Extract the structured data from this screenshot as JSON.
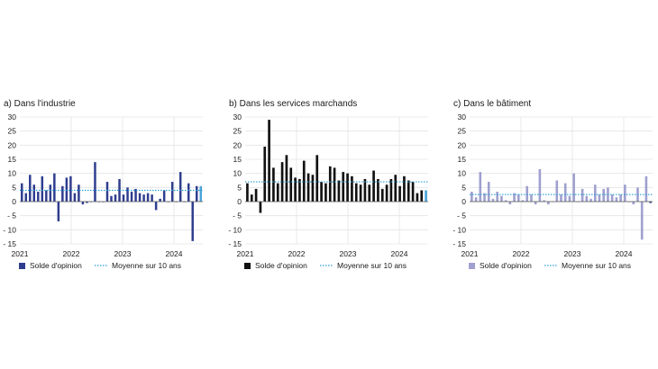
{
  "chart_data": [
    {
      "type": "bar",
      "title": "a) Dans l'industrie",
      "x_tick_labels": [
        "2021",
        "2022",
        "2023",
        "2024"
      ],
      "y_ticks": [
        30,
        25,
        20,
        15,
        10,
        5,
        0,
        -5,
        -10,
        -15
      ],
      "y_tick_labels": [
        "30",
        "25",
        "20",
        "15",
        "10",
        "5",
        "0",
        "- 5",
        "- 10",
        "- 15"
      ],
      "ylim": [
        -15,
        30
      ],
      "grid": true,
      "legend_position": "bottom-left",
      "series": [
        {
          "name": "Solde d'opinion",
          "color": "#2f3d8f",
          "highlight_color": "#4aa3d8",
          "values": [
            6.5,
            3,
            9.5,
            6,
            3.5,
            9,
            4,
            6,
            10,
            -7,
            5.5,
            8.5,
            9,
            3,
            6,
            -1,
            -0.5,
            0,
            14,
            0,
            0,
            7,
            2,
            2.5,
            8,
            2.5,
            5,
            3.5,
            4.5,
            3,
            2.5,
            3,
            2.5,
            -3,
            1,
            4,
            0,
            7,
            0,
            10.5,
            0,
            6.5,
            -14,
            5.5,
            5.5
          ]
        },
        {
          "name": "Moyenne sur 10 ans",
          "color": "#2b9fd8",
          "value": 4
        }
      ]
    },
    {
      "type": "bar",
      "title": "b) Dans les services marchands",
      "x_tick_labels": [
        "2021",
        "2022",
        "2023",
        "2024"
      ],
      "y_ticks": [
        30,
        25,
        20,
        15,
        10,
        5,
        0,
        -5,
        -10,
        -15
      ],
      "y_tick_labels": [
        "30",
        "25",
        "20",
        "15",
        "10",
        "5",
        "0",
        "- 5",
        "- 10",
        "- 15"
      ],
      "ylim": [
        -15,
        30
      ],
      "grid": true,
      "legend_position": "bottom-left",
      "series": [
        {
          "name": "Solde d'opinion",
          "color": "#111111",
          "highlight_color": "#4aa3d8",
          "values": [
            6.5,
            2.5,
            4.5,
            -4,
            19.5,
            29,
            12,
            6.5,
            14,
            16.5,
            12,
            8.5,
            8,
            14.5,
            10,
            9.5,
            16.5,
            7,
            6.5,
            12.5,
            12,
            7.5,
            10.5,
            10,
            9,
            6.5,
            6,
            8,
            6,
            11,
            8,
            4.5,
            6,
            8,
            9.5,
            5.5,
            9,
            7.5,
            7,
            3,
            4,
            4
          ]
        },
        {
          "name": "Moyenne sur 10 ans",
          "color": "#2b9fd8",
          "value": 7
        }
      ]
    },
    {
      "type": "bar",
      "title": "c) Dans le bâtiment",
      "x_tick_labels": [
        "2021",
        "2022",
        "2023",
        "2024"
      ],
      "y_ticks": [
        30,
        25,
        20,
        15,
        10,
        5,
        0,
        -5,
        -10,
        -15
      ],
      "y_tick_labels": [
        "30",
        "25",
        "20",
        "15",
        "10",
        "5",
        "0",
        "- 5",
        "- 10",
        "- 15"
      ],
      "ylim": [
        -15,
        30
      ],
      "grid": true,
      "legend_position": "bottom-left",
      "series": [
        {
          "name": "Solde d'opinion",
          "color": "#9fa0cf",
          "highlight_color": "#2f3d8f",
          "values": [
            3.5,
            1.5,
            10.5,
            3,
            7,
            1,
            3.5,
            2,
            0.5,
            -1,
            3,
            2.5,
            0.5,
            5.5,
            2.5,
            -1,
            11.5,
            0.5,
            -1,
            0,
            7.5,
            2.5,
            6.5,
            2,
            10,
            0,
            4.5,
            2,
            1,
            6,
            2.5,
            4.5,
            5,
            2.5,
            1.5,
            2.5,
            6,
            0,
            -1,
            5,
            -13.5,
            9,
            -0.5
          ]
        },
        {
          "name": "Moyenne sur 10 ans",
          "color": "#2b9fd8",
          "value": 2.5
        }
      ]
    }
  ]
}
